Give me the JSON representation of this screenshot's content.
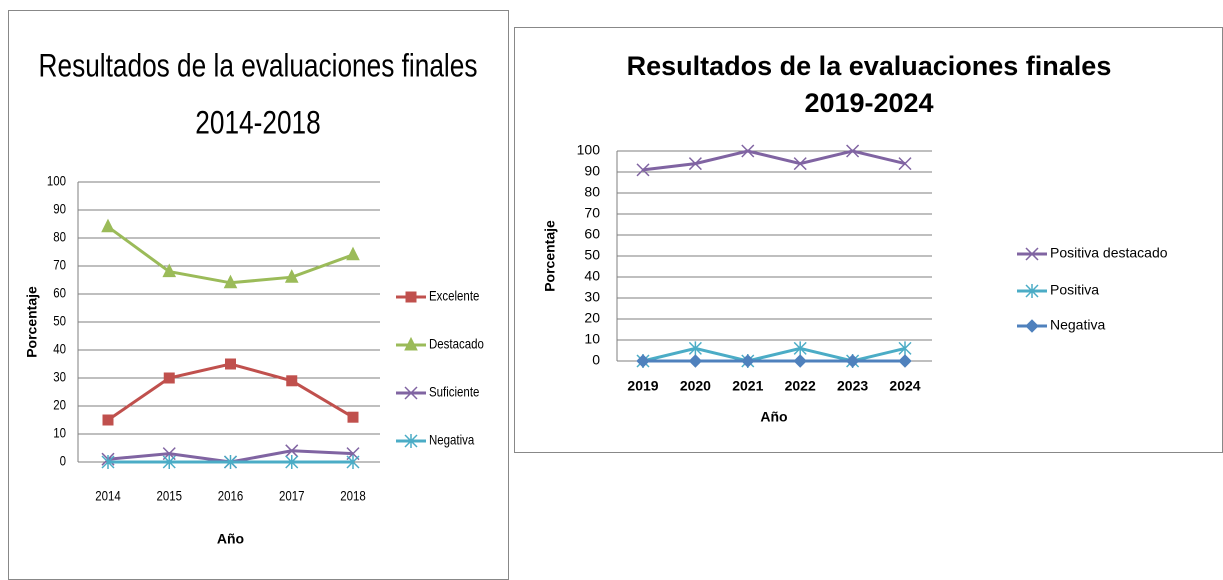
{
  "chart_data": [
    {
      "type": "line",
      "title": [
        "Resultados de la evaluaciones finales",
        "2014-2018"
      ],
      "x_label": "Año",
      "y_label": "Porcentaje",
      "categories": [
        "2014",
        "2015",
        "2016",
        "2017",
        "2018"
      ],
      "ylim": [
        0,
        100
      ],
      "yticks": [
        0,
        10,
        20,
        30,
        40,
        50,
        60,
        70,
        80,
        90,
        100
      ],
      "grid": true,
      "legend": "right",
      "series": [
        {
          "name": "Excelente",
          "color": "#c0504d",
          "marker": "square",
          "values": [
            15,
            30,
            35,
            29,
            16
          ]
        },
        {
          "name": "Destacado",
          "color": "#9bbb59",
          "marker": "triangle",
          "values": [
            84,
            68,
            64,
            66,
            74
          ]
        },
        {
          "name": "Suficiente",
          "color": "#8064a2",
          "marker": "x",
          "values": [
            1,
            3,
            0,
            4,
            3
          ]
        },
        {
          "name": "Negativa",
          "color": "#4bacc6",
          "marker": "star",
          "values": [
            0,
            0,
            0,
            0,
            0
          ]
        }
      ]
    },
    {
      "type": "line",
      "title": [
        "Resultados de la evaluaciones finales",
        "2019-2024"
      ],
      "x_label": "Año",
      "y_label": "Porcentaje",
      "categories": [
        "2019",
        "2020",
        "2021",
        "2022",
        "2023",
        "2024"
      ],
      "ylim": [
        0,
        100
      ],
      "yticks": [
        0,
        10,
        20,
        30,
        40,
        50,
        60,
        70,
        80,
        90,
        100
      ],
      "grid": true,
      "legend": "right",
      "series": [
        {
          "name": "Positiva destacado",
          "color": "#8064a2",
          "marker": "x",
          "values": [
            91,
            94,
            100,
            94,
            100,
            94
          ]
        },
        {
          "name": "Positiva",
          "color": "#4bacc6",
          "marker": "star",
          "values": [
            0,
            6,
            0,
            6,
            0,
            6
          ]
        },
        {
          "name": "Negativa",
          "color": "#4f81bd",
          "marker": "diamond",
          "values": [
            0,
            0,
            0,
            0,
            0,
            0
          ]
        }
      ]
    }
  ]
}
